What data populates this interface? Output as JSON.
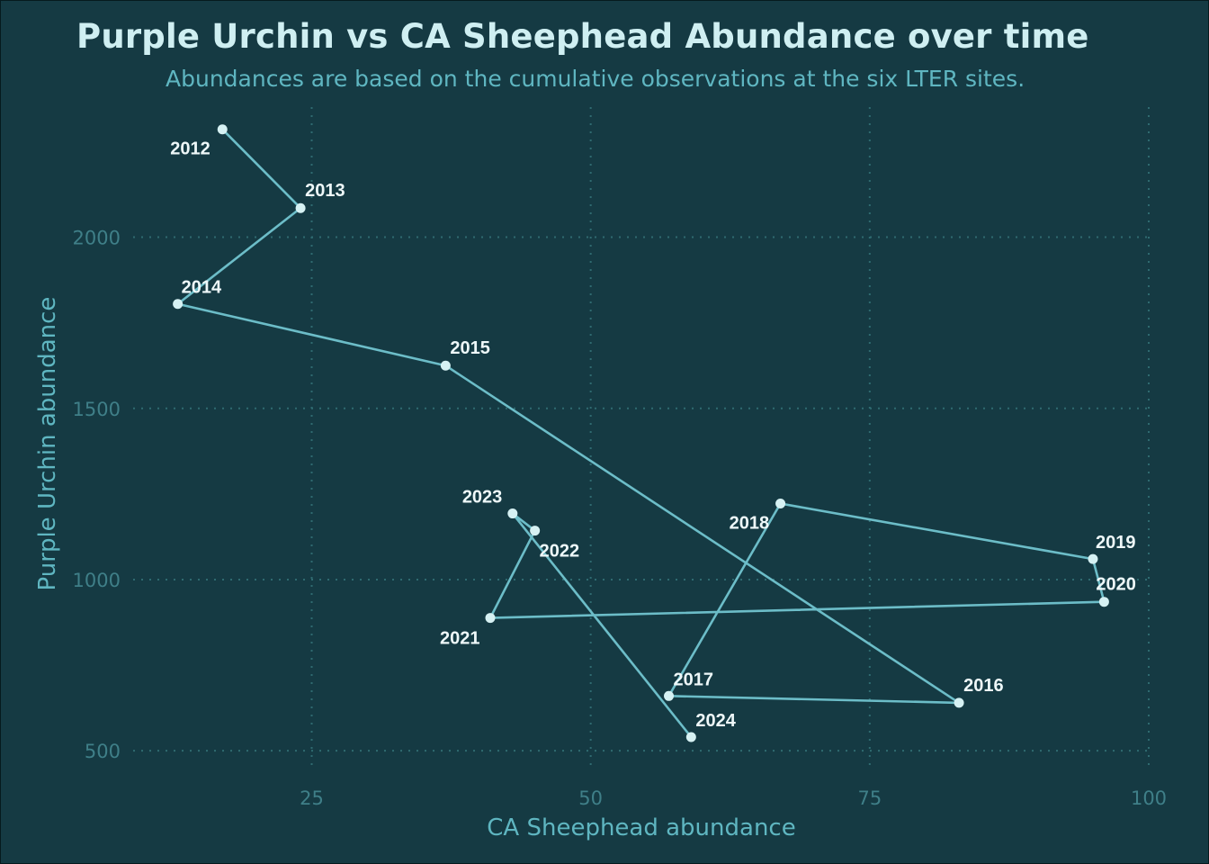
{
  "chart_data": {
    "type": "line",
    "title": "Purple Urchin vs CA Sheephead Abundance over time",
    "subtitle": "Abundances are based on the cumulative observations at the six LTER sites.",
    "xlabel": "CA Sheephead abundance",
    "ylabel": "Purple Urchin abundance",
    "xlim": [
      9,
      100
    ],
    "ylim": [
      440,
      2380
    ],
    "x_ticks": [
      25,
      50,
      75,
      100
    ],
    "y_ticks": [
      500,
      1000,
      1500,
      2000
    ],
    "grid": "dotted",
    "colors": {
      "background": "#153a43",
      "line": "#6cbdc8",
      "point": "#d6f1f3",
      "label": "#eef8f9",
      "grid": "#2f6a70",
      "axis_text": "#3f7f88"
    },
    "points": [
      {
        "year": "2012",
        "x": 17,
        "y": 2315
      },
      {
        "year": "2013",
        "x": 24,
        "y": 2085
      },
      {
        "year": "2014",
        "x": 13,
        "y": 1805
      },
      {
        "year": "2015",
        "x": 37,
        "y": 1625
      },
      {
        "year": "2016",
        "x": 83,
        "y": 640
      },
      {
        "year": "2017",
        "x": 57,
        "y": 660
      },
      {
        "year": "2018",
        "x": 67,
        "y": 1222
      },
      {
        "year": "2019",
        "x": 95,
        "y": 1060
      },
      {
        "year": "2020",
        "x": 96,
        "y": 935
      },
      {
        "year": "2021",
        "x": 41,
        "y": 888
      },
      {
        "year": "2022",
        "x": 45,
        "y": 1143
      },
      {
        "year": "2023",
        "x": 43,
        "y": 1193
      },
      {
        "year": "2024",
        "x": 59,
        "y": 540
      }
    ]
  }
}
